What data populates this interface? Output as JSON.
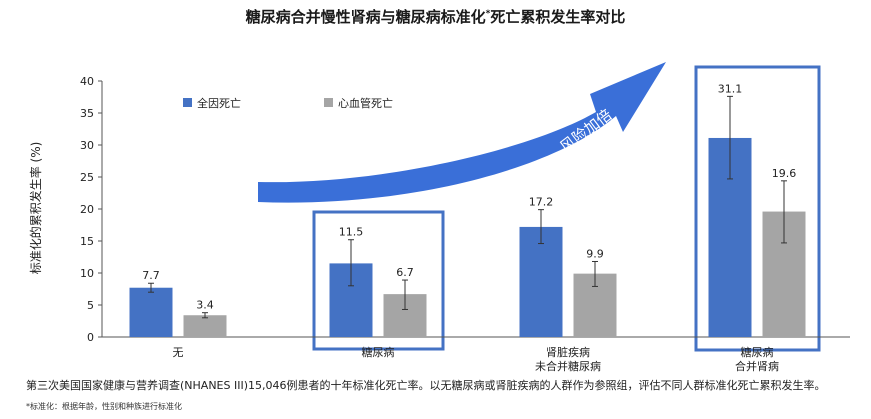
{
  "title": "糖尿病合并慢性肾病与糖尿病标准化",
  "title_sup": "*",
  "title_tail": "死亡累积发生率对比",
  "arrow_text": "风险加倍",
  "footnote": "第三次美国国家健康与营养调查(NHANES III)15,046例患者的十年标准化死亡率。以无糖尿病或肾脏疾病的人群作为参照组，评估不同人群标准化死亡累积发生率。",
  "footnote_small": "*标准化：根据年龄，性别和种族进行标准化",
  "colors": {
    "all_cause": "#4472c4",
    "cardio": "#a5a5a5",
    "highlight_box": "#4472c4",
    "arrow": "#3a6fd8"
  },
  "chart_data": {
    "type": "bar",
    "ylabel": "标准化的累积发生率 (%)",
    "ylim": [
      0,
      40
    ],
    "yticks": [
      0,
      5,
      10,
      15,
      20,
      25,
      30,
      35,
      40
    ],
    "legend_position": "top-left",
    "grid": false,
    "categories": [
      [
        "无"
      ],
      [
        "糖尿病"
      ],
      [
        "肾脏疾病",
        "未合并糖尿病"
      ],
      [
        "糖尿病",
        "合并肾病"
      ]
    ],
    "highlighted_categories": [
      1,
      3
    ],
    "series": [
      {
        "name": "全因死亡",
        "values": [
          7.7,
          11.5,
          17.2,
          31.1
        ],
        "labels": [
          "7.7",
          "11.5",
          "17.2",
          "31.1"
        ],
        "err_low": [
          7.0,
          8.0,
          14.6,
          24.7
        ],
        "err_high": [
          8.4,
          15.2,
          19.9,
          37.6
        ]
      },
      {
        "name": "心血管死亡",
        "values": [
          3.4,
          6.7,
          9.9,
          19.6
        ],
        "labels": [
          "3.4",
          "6.7",
          "9.9",
          "19.6"
        ],
        "err_low": [
          3.0,
          4.3,
          7.9,
          14.7
        ],
        "err_high": [
          3.8,
          8.9,
          11.8,
          24.4
        ]
      }
    ]
  }
}
